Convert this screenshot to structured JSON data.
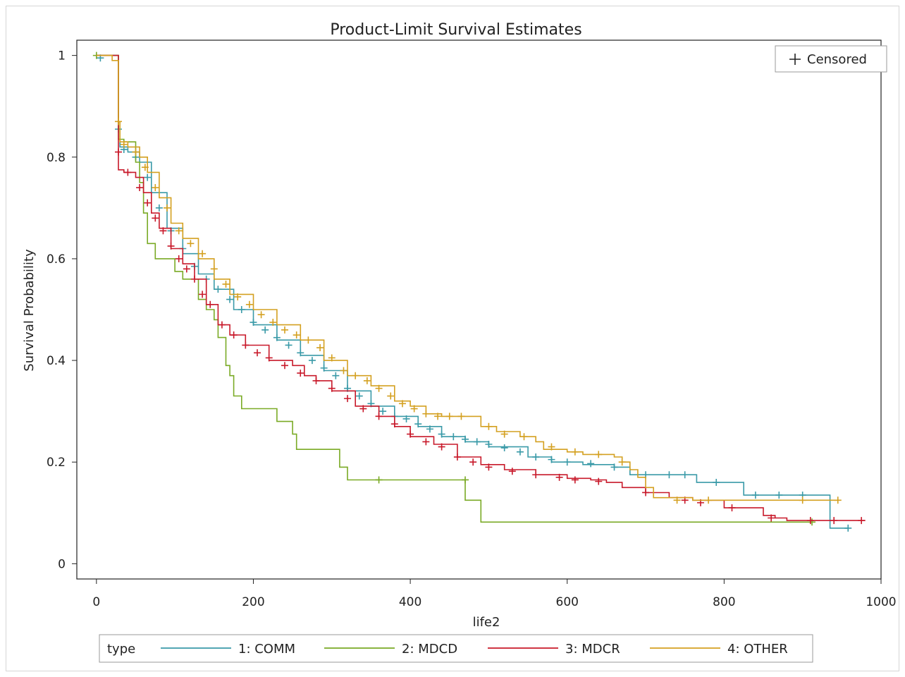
{
  "chart_data": {
    "type": "line",
    "step": true,
    "title": "Product-Limit Survival Estimates",
    "xlabel": "life2",
    "ylabel": "Survival Probability",
    "xlim": [
      -25,
      1000
    ],
    "ylim": [
      -0.03,
      1.03
    ],
    "xticks": [
      0,
      200,
      400,
      600,
      800,
      1000
    ],
    "yticks": [
      0,
      0.2,
      0.4,
      0.6,
      0.8,
      1
    ],
    "ytick_labels": [
      "0",
      "0.2",
      "0.4",
      "0.6",
      "0.8",
      "1"
    ],
    "grid": false,
    "inset_legend": {
      "position": "top-right",
      "label": "Censored"
    },
    "legend": {
      "position": "bottom",
      "title": "type"
    },
    "series": [
      {
        "name": "1: COMM",
        "color": "#3a9aa8",
        "points": [
          [
            0,
            1
          ],
          [
            28,
            1
          ],
          [
            28,
            0.855
          ],
          [
            30,
            0.82
          ],
          [
            40,
            0.81
          ],
          [
            55,
            0.79
          ],
          [
            70,
            0.73
          ],
          [
            90,
            0.66
          ],
          [
            110,
            0.61
          ],
          [
            130,
            0.57
          ],
          [
            150,
            0.54
          ],
          [
            175,
            0.5
          ],
          [
            200,
            0.47
          ],
          [
            230,
            0.44
          ],
          [
            260,
            0.41
          ],
          [
            290,
            0.38
          ],
          [
            320,
            0.34
          ],
          [
            350,
            0.31
          ],
          [
            380,
            0.29
          ],
          [
            410,
            0.27
          ],
          [
            440,
            0.25
          ],
          [
            470,
            0.24
          ],
          [
            500,
            0.23
          ],
          [
            550,
            0.21
          ],
          [
            580,
            0.2
          ],
          [
            620,
            0.195
          ],
          [
            660,
            0.19
          ],
          [
            680,
            0.175
          ],
          [
            760,
            0.175
          ],
          [
            765,
            0.16
          ],
          [
            825,
            0.16
          ],
          [
            825,
            0.135
          ],
          [
            935,
            0.135
          ],
          [
            935,
            0.07
          ],
          [
            958,
            0.07
          ]
        ],
        "censored": [
          [
            5,
            0.995
          ],
          [
            28,
            0.855
          ],
          [
            35,
            0.815
          ],
          [
            50,
            0.8
          ],
          [
            65,
            0.76
          ],
          [
            80,
            0.7
          ],
          [
            95,
            0.655
          ],
          [
            110,
            0.62
          ],
          [
            125,
            0.585
          ],
          [
            140,
            0.56
          ],
          [
            155,
            0.54
          ],
          [
            170,
            0.52
          ],
          [
            185,
            0.5
          ],
          [
            200,
            0.475
          ],
          [
            215,
            0.46
          ],
          [
            230,
            0.445
          ],
          [
            245,
            0.43
          ],
          [
            260,
            0.415
          ],
          [
            275,
            0.4
          ],
          [
            290,
            0.385
          ],
          [
            305,
            0.37
          ],
          [
            320,
            0.345
          ],
          [
            335,
            0.33
          ],
          [
            350,
            0.315
          ],
          [
            365,
            0.3
          ],
          [
            380,
            0.29
          ],
          [
            395,
            0.285
          ],
          [
            410,
            0.275
          ],
          [
            425,
            0.265
          ],
          [
            440,
            0.255
          ],
          [
            455,
            0.25
          ],
          [
            470,
            0.245
          ],
          [
            485,
            0.24
          ],
          [
            500,
            0.235
          ],
          [
            520,
            0.228
          ],
          [
            540,
            0.22
          ],
          [
            560,
            0.21
          ],
          [
            580,
            0.205
          ],
          [
            600,
            0.2
          ],
          [
            630,
            0.197
          ],
          [
            660,
            0.19
          ],
          [
            700,
            0.175
          ],
          [
            730,
            0.175
          ],
          [
            750,
            0.175
          ],
          [
            790,
            0.16
          ],
          [
            840,
            0.135
          ],
          [
            870,
            0.135
          ],
          [
            900,
            0.135
          ],
          [
            958,
            0.07
          ]
        ]
      },
      {
        "name": "2: MDCD",
        "color": "#7aaa25",
        "points": [
          [
            0,
            1
          ],
          [
            28,
            1
          ],
          [
            28,
            0.835
          ],
          [
            35,
            0.83
          ],
          [
            50,
            0.79
          ],
          [
            55,
            0.75
          ],
          [
            60,
            0.69
          ],
          [
            65,
            0.63
          ],
          [
            75,
            0.6
          ],
          [
            90,
            0.6
          ],
          [
            100,
            0.575
          ],
          [
            110,
            0.56
          ],
          [
            130,
            0.52
          ],
          [
            140,
            0.5
          ],
          [
            150,
            0.48
          ],
          [
            155,
            0.445
          ],
          [
            165,
            0.39
          ],
          [
            170,
            0.37
          ],
          [
            175,
            0.33
          ],
          [
            185,
            0.305
          ],
          [
            230,
            0.305
          ],
          [
            230,
            0.28
          ],
          [
            250,
            0.28
          ],
          [
            250,
            0.255
          ],
          [
            255,
            0.225
          ],
          [
            300,
            0.225
          ],
          [
            310,
            0.19
          ],
          [
            320,
            0.165
          ],
          [
            470,
            0.165
          ],
          [
            470,
            0.125
          ],
          [
            490,
            0.125
          ],
          [
            490,
            0.082
          ],
          [
            912,
            0.082
          ]
        ],
        "censored": [
          [
            0,
            1.0
          ],
          [
            360,
            0.165
          ],
          [
            470,
            0.165
          ],
          [
            912,
            0.082
          ]
        ]
      },
      {
        "name": "3: MDCR",
        "color": "#c8192a",
        "points": [
          [
            0,
            1
          ],
          [
            28,
            1
          ],
          [
            28,
            0.775
          ],
          [
            35,
            0.77
          ],
          [
            50,
            0.76
          ],
          [
            60,
            0.73
          ],
          [
            70,
            0.69
          ],
          [
            80,
            0.66
          ],
          [
            95,
            0.62
          ],
          [
            110,
            0.59
          ],
          [
            125,
            0.56
          ],
          [
            140,
            0.51
          ],
          [
            155,
            0.47
          ],
          [
            170,
            0.45
          ],
          [
            190,
            0.43
          ],
          [
            220,
            0.4
          ],
          [
            250,
            0.39
          ],
          [
            265,
            0.37
          ],
          [
            280,
            0.36
          ],
          [
            300,
            0.34
          ],
          [
            330,
            0.31
          ],
          [
            360,
            0.29
          ],
          [
            380,
            0.27
          ],
          [
            400,
            0.25
          ],
          [
            430,
            0.235
          ],
          [
            460,
            0.21
          ],
          [
            490,
            0.195
          ],
          [
            520,
            0.185
          ],
          [
            560,
            0.175
          ],
          [
            600,
            0.168
          ],
          [
            630,
            0.165
          ],
          [
            650,
            0.16
          ],
          [
            670,
            0.15
          ],
          [
            700,
            0.14
          ],
          [
            730,
            0.13
          ],
          [
            760,
            0.125
          ],
          [
            800,
            0.11
          ],
          [
            850,
            0.095
          ],
          [
            865,
            0.09
          ],
          [
            880,
            0.085
          ],
          [
            980,
            0.085
          ]
        ],
        "censored": [
          [
            28,
            0.81
          ],
          [
            40,
            0.77
          ],
          [
            55,
            0.74
          ],
          [
            65,
            0.71
          ],
          [
            75,
            0.68
          ],
          [
            85,
            0.655
          ],
          [
            95,
            0.625
          ],
          [
            105,
            0.6
          ],
          [
            115,
            0.58
          ],
          [
            125,
            0.56
          ],
          [
            135,
            0.53
          ],
          [
            145,
            0.51
          ],
          [
            160,
            0.47
          ],
          [
            175,
            0.45
          ],
          [
            190,
            0.43
          ],
          [
            205,
            0.415
          ],
          [
            220,
            0.405
          ],
          [
            240,
            0.39
          ],
          [
            260,
            0.375
          ],
          [
            280,
            0.36
          ],
          [
            300,
            0.345
          ],
          [
            320,
            0.325
          ],
          [
            340,
            0.305
          ],
          [
            360,
            0.29
          ],
          [
            380,
            0.275
          ],
          [
            400,
            0.255
          ],
          [
            420,
            0.24
          ],
          [
            440,
            0.23
          ],
          [
            460,
            0.21
          ],
          [
            480,
            0.2
          ],
          [
            500,
            0.19
          ],
          [
            530,
            0.182
          ],
          [
            560,
            0.175
          ],
          [
            590,
            0.17
          ],
          [
            610,
            0.165
          ],
          [
            640,
            0.162
          ],
          [
            700,
            0.14
          ],
          [
            750,
            0.125
          ],
          [
            770,
            0.12
          ],
          [
            810,
            0.11
          ],
          [
            860,
            0.09
          ],
          [
            910,
            0.085
          ],
          [
            940,
            0.085
          ],
          [
            975,
            0.085
          ]
        ]
      },
      {
        "name": "4: OTHER",
        "color": "#d4a020",
        "points": [
          [
            0,
            1
          ],
          [
            20,
            0.99
          ],
          [
            28,
            0.99
          ],
          [
            28,
            0.87
          ],
          [
            30,
            0.83
          ],
          [
            40,
            0.82
          ],
          [
            55,
            0.8
          ],
          [
            65,
            0.77
          ],
          [
            80,
            0.72
          ],
          [
            95,
            0.67
          ],
          [
            110,
            0.64
          ],
          [
            130,
            0.6
          ],
          [
            150,
            0.56
          ],
          [
            170,
            0.53
          ],
          [
            200,
            0.5
          ],
          [
            230,
            0.47
          ],
          [
            260,
            0.44
          ],
          [
            290,
            0.4
          ],
          [
            320,
            0.37
          ],
          [
            350,
            0.35
          ],
          [
            380,
            0.32
          ],
          [
            400,
            0.31
          ],
          [
            420,
            0.295
          ],
          [
            440,
            0.29
          ],
          [
            470,
            0.29
          ],
          [
            490,
            0.27
          ],
          [
            510,
            0.26
          ],
          [
            540,
            0.25
          ],
          [
            560,
            0.24
          ],
          [
            570,
            0.225
          ],
          [
            600,
            0.22
          ],
          [
            620,
            0.215
          ],
          [
            660,
            0.21
          ],
          [
            670,
            0.2
          ],
          [
            680,
            0.185
          ],
          [
            690,
            0.17
          ],
          [
            700,
            0.15
          ],
          [
            710,
            0.13
          ],
          [
            760,
            0.125
          ],
          [
            900,
            0.125
          ],
          [
            945,
            0.125
          ]
        ],
        "censored": [
          [
            28,
            0.87
          ],
          [
            35,
            0.825
          ],
          [
            50,
            0.81
          ],
          [
            62,
            0.78
          ],
          [
            75,
            0.74
          ],
          [
            90,
            0.7
          ],
          [
            105,
            0.655
          ],
          [
            120,
            0.63
          ],
          [
            135,
            0.61
          ],
          [
            150,
            0.58
          ],
          [
            165,
            0.55
          ],
          [
            180,
            0.525
          ],
          [
            195,
            0.51
          ],
          [
            210,
            0.49
          ],
          [
            225,
            0.475
          ],
          [
            240,
            0.46
          ],
          [
            255,
            0.45
          ],
          [
            270,
            0.44
          ],
          [
            285,
            0.425
          ],
          [
            300,
            0.405
          ],
          [
            315,
            0.38
          ],
          [
            330,
            0.37
          ],
          [
            345,
            0.36
          ],
          [
            360,
            0.345
          ],
          [
            375,
            0.33
          ],
          [
            390,
            0.315
          ],
          [
            405,
            0.305
          ],
          [
            420,
            0.295
          ],
          [
            435,
            0.29
          ],
          [
            450,
            0.29
          ],
          [
            465,
            0.29
          ],
          [
            500,
            0.27
          ],
          [
            520,
            0.255
          ],
          [
            545,
            0.25
          ],
          [
            580,
            0.23
          ],
          [
            610,
            0.22
          ],
          [
            640,
            0.215
          ],
          [
            670,
            0.2
          ],
          [
            740,
            0.125
          ],
          [
            780,
            0.125
          ],
          [
            900,
            0.125
          ],
          [
            945,
            0.125
          ]
        ]
      }
    ]
  }
}
